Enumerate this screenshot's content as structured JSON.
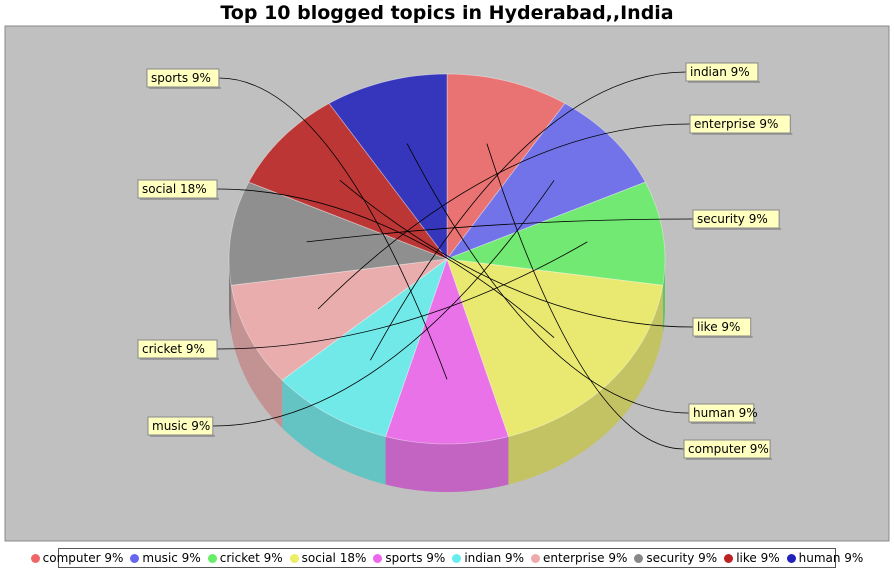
{
  "chart_data": {
    "type": "pie",
    "title": "Top 10 blogged topics in Hyderabad,,India",
    "slices": [
      {
        "name": "computer",
        "value": 9,
        "label": "computer 9%",
        "color": "#ee6666"
      },
      {
        "name": "music",
        "value": 9,
        "label": "music 9%",
        "color": "#6666ee"
      },
      {
        "name": "cricket",
        "value": 9,
        "label": "cricket 9%",
        "color": "#66ee66"
      },
      {
        "name": "social",
        "value": 18,
        "label": "social 18%",
        "color": "#eeee66"
      },
      {
        "name": "sports",
        "value": 9,
        "label": "sports 9%",
        "color": "#ee66ee"
      },
      {
        "name": "indian",
        "value": 9,
        "label": "indian 9%",
        "color": "#66eeee"
      },
      {
        "name": "enterprise",
        "value": 9,
        "label": "enterprise 9%",
        "color": "#eeaaaa"
      },
      {
        "name": "security",
        "value": 9,
        "label": "security 9%",
        "color": "#888888"
      },
      {
        "name": "like",
        "value": 9,
        "label": "like 9%",
        "color": "#bb2222"
      },
      {
        "name": "human",
        "value": 9,
        "label": "human 9%",
        "color": "#2222bb"
      }
    ],
    "legend": {
      "position": "bottom",
      "items": [
        "computer 9%",
        "music 9%",
        "cricket 9%",
        "social 18%",
        "sports 9%",
        "indian 9%",
        "enterprise 9%",
        "security 9%",
        "like 9%",
        "human 9%"
      ]
    },
    "plot_background": "#c0c0c0",
    "style": "3d-pie"
  }
}
